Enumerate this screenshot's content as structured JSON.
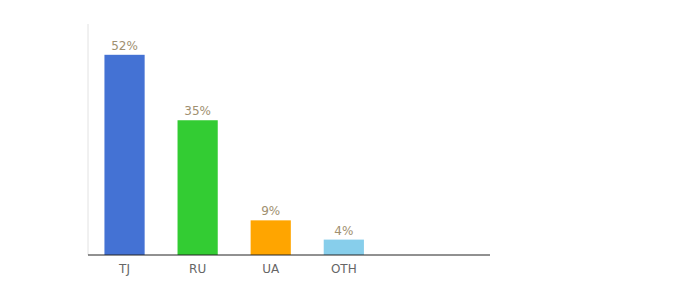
{
  "chart_data": {
    "type": "bar",
    "categories": [
      "TJ",
      "RU",
      "UA",
      "OTH"
    ],
    "values": [
      52,
      35,
      9,
      4
    ],
    "value_labels": [
      "52%",
      "35%",
      "9%",
      "4%"
    ],
    "colors": [
      "#4472d4",
      "#33cc33",
      "#FFA500",
      "#87CEEB"
    ],
    "ylim": [
      0,
      60
    ],
    "data_labels": true,
    "tick_labels": "x",
    "grid": false
  }
}
